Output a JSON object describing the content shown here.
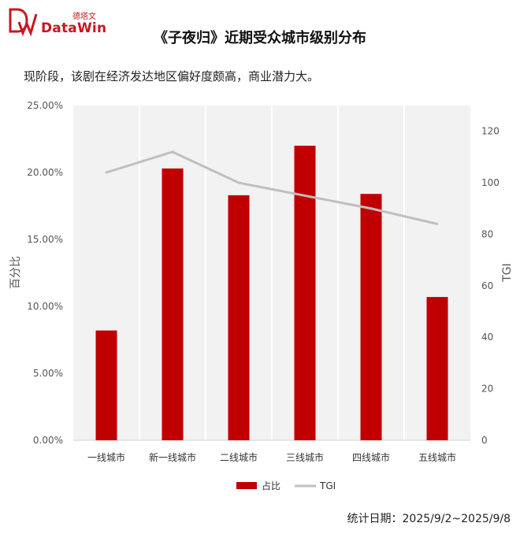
{
  "brand": {
    "name": "DataWin",
    "name_cn": "德塔文",
    "color": "#c4181f"
  },
  "header": {
    "title": "《子夜归》近期受众城市级别分布",
    "subtitle": "现阶段，该剧在经济发达地区偏好度颇高，商业潜力大。"
  },
  "footer": {
    "label": "统计日期：",
    "range": "2025/9/2~2025/9/8"
  },
  "chart_data": {
    "type": "bar",
    "categories": [
      "一线城市",
      "新一线城市",
      "二线城市",
      "三线城市",
      "四线城市",
      "五线城市"
    ],
    "series": [
      {
        "name": "占比",
        "type": "bar",
        "axis": "left",
        "color": "#c00000",
        "values": [
          8.2,
          20.3,
          18.3,
          22.0,
          18.4,
          10.7
        ]
      },
      {
        "name": "TGI",
        "type": "line",
        "axis": "right",
        "color": "#bfbfbf",
        "values": [
          104,
          112,
          100,
          95,
          90,
          84
        ]
      }
    ],
    "ylabel": "百分比",
    "y2label": "TGI",
    "ylim": [
      0,
      25
    ],
    "y2lim": [
      0,
      130
    ],
    "yticks": [
      "0.00%",
      "5.00%",
      "10.00%",
      "15.00%",
      "20.00%",
      "25.00%"
    ],
    "y2ticks": [
      "0",
      "20",
      "40",
      "60",
      "80",
      "100",
      "120"
    ],
    "grid": "vertical-category-bands",
    "legend_position": "bottom"
  }
}
